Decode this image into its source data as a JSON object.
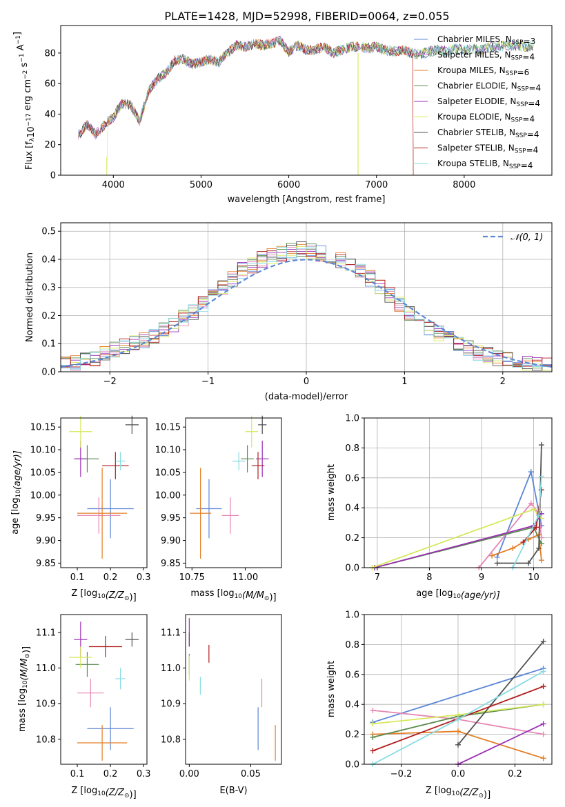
{
  "figure_title": "PLATE=1428, MJD=52998, FIBERID=0064, z=0.055",
  "colors": {
    "Chabrier MILES": "#5b87d6",
    "Salpeter MILES": "#e686b4",
    "Kroupa MILES": "#e37d24",
    "Chabrier ELODIE": "#5a8a4f",
    "Salpeter ELODIE": "#9a2fb4",
    "Kroupa ELODIE": "#d6e85a",
    "Chabrier STELIB": "#4f4f4f",
    "Salpeter STELIB": "#b11d1d",
    "Kroupa STELIB": "#86dbe3"
  },
  "models": [
    "Chabrier MILES",
    "Salpeter MILES",
    "Kroupa MILES",
    "Chabrier ELODIE",
    "Salpeter ELODIE",
    "Kroupa ELODIE",
    "Chabrier STELIB",
    "Salpeter STELIB",
    "Kroupa STELIB"
  ],
  "chart_data": [
    {
      "panel": "spectrum",
      "type": "line",
      "xlabel": "wavelength [Angstrom, rest frame]",
      "ylabel_main": "Flux [f",
      "ylabel_sub": "λ",
      "ylabel_mid": "10",
      "ylabel_sup1": "−17",
      "ylabel_tail": " erg cm",
      "ylabel_sup2": "−2",
      "ylabel_tail2": " s",
      "ylabel_sup3": "−1",
      "ylabel_tail3": " A",
      "ylabel_sup4": "−1",
      "ylabel_end": "]",
      "xlim": [
        3400,
        9000
      ],
      "ylim": [
        0,
        98
      ],
      "xticks": [
        4000,
        5000,
        6000,
        7000,
        8000
      ],
      "yticks": [
        0,
        20,
        40,
        60,
        80
      ],
      "x": [
        3600,
        3700,
        3800,
        3900,
        4000,
        4100,
        4200,
        4300,
        4400,
        4500,
        4600,
        4700,
        4800,
        4900,
        5000,
        5100,
        5200,
        5300,
        5400,
        5500,
        5600,
        5700,
        5800,
        5900,
        6000,
        6100,
        6200,
        6300,
        6400,
        6500,
        6600,
        6700,
        6800,
        6900,
        7000,
        7100,
        7200,
        7300,
        7400,
        7500,
        7600,
        7700,
        7800,
        7900,
        8000,
        8100,
        8200,
        8300,
        8400,
        8500,
        8600,
        8700,
        8800
      ],
      "y": [
        26,
        33,
        27,
        33,
        38,
        47,
        46,
        35,
        55,
        63,
        67,
        75,
        76,
        73,
        74,
        76,
        74,
        80,
        85,
        84,
        86,
        85,
        86,
        88,
        81,
        85,
        82,
        82,
        84,
        80,
        82,
        84,
        84,
        83,
        84,
        82,
        81,
        82,
        80,
        79,
        81,
        82,
        81,
        83,
        82,
        83,
        82,
        84,
        84,
        85,
        85,
        84,
        85
      ],
      "legend": [
        {
          "name": "Chabrier MILES",
          "nssp": "3"
        },
        {
          "name": "Salpeter MILES",
          "nssp": "4"
        },
        {
          "name": "Kroupa MILES",
          "nssp": "6"
        },
        {
          "name": "Chabrier ELODIE",
          "nssp": "4"
        },
        {
          "name": "Salpeter ELODIE",
          "nssp": "4"
        },
        {
          "name": "Kroupa ELODIE",
          "nssp": "4"
        },
        {
          "name": "Chabrier STELIB",
          "nssp": "4"
        },
        {
          "name": "Salpeter STELIB",
          "nssp": "4"
        },
        {
          "name": "Kroupa STELIB",
          "nssp": "4"
        }
      ],
      "legend_label_sub": "SSP",
      "legend_placement": "upper right"
    },
    {
      "panel": "residuals",
      "type": "histogram",
      "xlabel": "(data-model)/error",
      "ylabel": "Normed distribution",
      "xlim": [
        -2.5,
        2.5
      ],
      "ylim": [
        0,
        0.53
      ],
      "xticks": [
        -2,
        -1,
        0,
        1,
        2
      ],
      "yticks": [
        0.0,
        0.1,
        0.2,
        0.3,
        0.4,
        0.5
      ],
      "grid": true,
      "bin_edges_start": -2.5,
      "bin_width": 0.1,
      "approx_heights": [
        0.03,
        0.035,
        0.04,
        0.05,
        0.06,
        0.08,
        0.09,
        0.1,
        0.11,
        0.13,
        0.15,
        0.17,
        0.19,
        0.21,
        0.24,
        0.27,
        0.3,
        0.33,
        0.36,
        0.38,
        0.4,
        0.41,
        0.42,
        0.43,
        0.44,
        0.43,
        0.42,
        0.41,
        0.4,
        0.38,
        0.36,
        0.33,
        0.3,
        0.27,
        0.24,
        0.21,
        0.18,
        0.16,
        0.14,
        0.12,
        0.1,
        0.085,
        0.07,
        0.06,
        0.05,
        0.04,
        0.035,
        0.03,
        0.025,
        0.02
      ],
      "reference_label": "𝒩(0, 1)",
      "legend_placement": "upper right"
    },
    {
      "panel": "age_vs_Z",
      "type": "scatter",
      "xlabel": "Z [log",
      "xlabel_sub": "10",
      "xlabel_end": "(Z/Z",
      "xlabel_sun": "⊙",
      "xlabel_close": ")]",
      "ylabel": "age  [log",
      "ylabel_sub": "10",
      "ylabel_end": "(age/yr)]",
      "xlim": [
        0.05,
        0.31
      ],
      "ylim": [
        9.84,
        10.17
      ],
      "xticks": [
        0.1,
        0.2,
        0.3
      ],
      "yticks": [
        9.85,
        9.9,
        9.95,
        10.0,
        10.05,
        10.1,
        10.15
      ],
      "points": [
        {
          "series": "Chabrier MILES",
          "x": 0.2,
          "y": 9.97,
          "xerr": 0.07,
          "yerr": 0.065
        },
        {
          "series": "Salpeter MILES",
          "x": 0.165,
          "y": 9.955,
          "xerr": 0.065,
          "yerr": 0.04
        },
        {
          "series": "Kroupa MILES",
          "x": 0.175,
          "y": 9.96,
          "xerr": 0.075,
          "yerr": 0.1
        },
        {
          "series": "Chabrier ELODIE",
          "x": 0.13,
          "y": 10.08,
          "xerr": 0.035,
          "yerr": 0.03
        },
        {
          "series": "Salpeter ELODIE",
          "x": 0.11,
          "y": 10.08,
          "xerr": 0.02,
          "yerr": 0.04
        },
        {
          "series": "Kroupa ELODIE",
          "x": 0.11,
          "y": 10.14,
          "xerr": 0.035,
          "yerr": 0.035
        },
        {
          "series": "Chabrier STELIB",
          "x": 0.265,
          "y": 10.155,
          "xerr": 0.02,
          "yerr": 0.02
        },
        {
          "series": "Salpeter STELIB",
          "x": 0.215,
          "y": 10.065,
          "xerr": 0.04,
          "yerr": 0.03
        },
        {
          "series": "Kroupa STELIB",
          "x": 0.23,
          "y": 10.075,
          "xerr": 0.015,
          "yerr": 0.02
        }
      ]
    },
    {
      "panel": "age_vs_mass",
      "type": "scatter",
      "xlabel": "mass [log",
      "xlabel_sub": "10",
      "xlabel_end": "(M/M",
      "xlabel_sun": "⊙",
      "xlabel_close": ")]",
      "xlim": [
        10.72,
        11.17
      ],
      "ylim": [
        9.84,
        10.17
      ],
      "xticks": [
        10.75,
        11.0
      ],
      "yticks": [
        9.85,
        9.9,
        9.95,
        10.0,
        10.05,
        10.1,
        10.15
      ],
      "points": [
        {
          "series": "Chabrier MILES",
          "x": 10.83,
          "y": 9.97,
          "xerr": 0.06,
          "yerr": 0.065
        },
        {
          "series": "Salpeter MILES",
          "x": 10.93,
          "y": 9.955,
          "xerr": 0.04,
          "yerr": 0.04
        },
        {
          "series": "Kroupa MILES",
          "x": 10.79,
          "y": 9.96,
          "xerr": 0.05,
          "yerr": 0.1
        },
        {
          "series": "Chabrier ELODIE",
          "x": 11.01,
          "y": 10.08,
          "xerr": 0.03,
          "yerr": 0.03
        },
        {
          "series": "Salpeter ELODIE",
          "x": 11.08,
          "y": 10.08,
          "xerr": 0.03,
          "yerr": 0.04
        },
        {
          "series": "Kroupa ELODIE",
          "x": 11.03,
          "y": 10.14,
          "xerr": 0.03,
          "yerr": 0.035
        },
        {
          "series": "Chabrier STELIB",
          "x": 11.08,
          "y": 10.155,
          "xerr": 0.02,
          "yerr": 0.02
        },
        {
          "series": "Salpeter STELIB",
          "x": 11.06,
          "y": 10.065,
          "xerr": 0.03,
          "yerr": 0.03
        },
        {
          "series": "Kroupa STELIB",
          "x": 10.97,
          "y": 10.075,
          "xerr": 0.03,
          "yerr": 0.02
        }
      ]
    },
    {
      "panel": "weight_vs_age",
      "type": "line",
      "xlabel": "age  [log",
      "xlabel_sub": "10",
      "xlabel_end": "(age/yr)]",
      "ylabel": "mass weight",
      "xlim": [
        6.75,
        10.35
      ],
      "ylim": [
        0,
        1
      ],
      "xticks": [
        7,
        8,
        9,
        10
      ],
      "yticks": [
        0.0,
        0.2,
        0.4,
        0.6,
        0.8,
        1.0
      ],
      "grid": true,
      "series": [
        {
          "name": "Chabrier MILES",
          "x": [
            9.3,
            9.95,
            10.15
          ],
          "y": [
            0.07,
            0.64,
            0.28
          ]
        },
        {
          "name": "Salpeter MILES",
          "x": [
            8.95,
            9.95,
            10.1,
            10.15
          ],
          "y": [
            0.0,
            0.43,
            0.36,
            0.2
          ]
        },
        {
          "name": "Kroupa MILES",
          "x": [
            9.2,
            9.6,
            9.9,
            10.1,
            10.15
          ],
          "y": [
            0.08,
            0.13,
            0.19,
            0.22,
            0.05
          ]
        },
        {
          "name": "Chabrier ELODIE",
          "x": [
            6.95,
            10.0,
            10.15
          ],
          "y": [
            0.0,
            0.27,
            0.16
          ]
        },
        {
          "name": "Salpeter ELODIE",
          "x": [
            6.95,
            10.0,
            10.15
          ],
          "y": [
            0.0,
            0.28,
            0.36
          ]
        },
        {
          "name": "Kroupa ELODIE",
          "x": [
            6.9,
            10.0,
            10.15
          ],
          "y": [
            0.0,
            0.39,
            0.33
          ]
        },
        {
          "name": "Chabrier STELIB",
          "x": [
            9.3,
            9.9,
            10.1,
            10.15
          ],
          "y": [
            0.03,
            0.03,
            0.13,
            0.82
          ]
        },
        {
          "name": "Salpeter STELIB",
          "x": [
            9.8,
            10.05,
            10.15
          ],
          "y": [
            0.17,
            0.27,
            0.52
          ]
        },
        {
          "name": "Kroupa STELIB",
          "x": [
            9.6,
            10.1,
            10.15
          ],
          "y": [
            0.0,
            0.35,
            0.61
          ]
        }
      ]
    },
    {
      "panel": "mass_vs_Z",
      "type": "scatter",
      "xlabel": "Z [log",
      "xlabel_sub": "10",
      "xlabel_end": "(Z/Z",
      "xlabel_sun": "⊙",
      "xlabel_close": ")]",
      "ylabel": "mass [log",
      "ylabel_sub": "10",
      "ylabel_end": "(M/M",
      "ylabel_sun": "⊙",
      "ylabel_close": ")]",
      "xlim": [
        0.05,
        0.31
      ],
      "ylim": [
        10.73,
        11.15
      ],
      "xticks": [
        0.1,
        0.2,
        0.3
      ],
      "yticks": [
        10.8,
        10.9,
        11.0,
        11.1
      ],
      "points": [
        {
          "series": "Chabrier MILES",
          "x": 0.2,
          "y": 10.83,
          "xerr": 0.07,
          "yerr": 0.06
        },
        {
          "series": "Salpeter MILES",
          "x": 0.14,
          "y": 10.93,
          "xerr": 0.04,
          "yerr": 0.04
        },
        {
          "series": "Kroupa MILES",
          "x": 0.175,
          "y": 10.79,
          "xerr": 0.075,
          "yerr": 0.05
        },
        {
          "series": "Chabrier ELODIE",
          "x": 0.13,
          "y": 11.01,
          "xerr": 0.035,
          "yerr": 0.035
        },
        {
          "series": "Salpeter ELODIE",
          "x": 0.11,
          "y": 11.08,
          "xerr": 0.02,
          "yerr": 0.05
        },
        {
          "series": "Kroupa ELODIE",
          "x": 0.11,
          "y": 11.03,
          "xerr": 0.035,
          "yerr": 0.03
        },
        {
          "series": "Chabrier STELIB",
          "x": 0.265,
          "y": 11.08,
          "xerr": 0.02,
          "yerr": 0.02
        },
        {
          "series": "Salpeter STELIB",
          "x": 0.185,
          "y": 11.06,
          "xerr": 0.05,
          "yerr": 0.03
        },
        {
          "series": "Kroupa STELIB",
          "x": 0.23,
          "y": 10.97,
          "xerr": 0.015,
          "yerr": 0.03
        }
      ]
    },
    {
      "panel": "mass_vs_EBV",
      "type": "scatter",
      "xlabel": "E(B-V)",
      "xlim": [
        -0.003,
        0.075
      ],
      "ylim": [
        10.73,
        11.15
      ],
      "xticks": [
        0.0,
        0.05
      ],
      "yticks": [
        10.8,
        10.9,
        11.0,
        11.1
      ],
      "points": [
        {
          "series": "Chabrier MILES",
          "x": 0.056,
          "y": 10.83,
          "yerr": 0.06
        },
        {
          "series": "Salpeter MILES",
          "x": 0.059,
          "y": 10.93,
          "yerr": 0.04
        },
        {
          "series": "Kroupa MILES",
          "x": 0.07,
          "y": 10.79,
          "yerr": 0.05
        },
        {
          "series": "Chabrier ELODIE",
          "x": 0.0,
          "y": 11.01,
          "yerr": 0.03
        },
        {
          "series": "Salpeter ELODIE",
          "x": 0.0,
          "y": 11.1,
          "yerr": 0.04
        },
        {
          "series": "Kroupa ELODIE",
          "x": 0.0,
          "y": 11.0,
          "yerr": 0.035
        },
        {
          "series": "Chabrier STELIB",
          "x": 0.0,
          "y": 11.08,
          "yerr": 0.02
        },
        {
          "series": "Salpeter STELIB",
          "x": 0.016,
          "y": 11.04,
          "yerr": 0.025
        },
        {
          "series": "Kroupa STELIB",
          "x": 0.009,
          "y": 10.95,
          "yerr": 0.025
        }
      ]
    },
    {
      "panel": "weight_vs_Z",
      "type": "line",
      "xlabel": "Z [log",
      "xlabel_sub": "10",
      "xlabel_end": "(Z/Z",
      "xlabel_sun": "⊙",
      "xlabel_close": ")]",
      "ylabel": "mass weight",
      "xlim": [
        -0.33,
        0.33
      ],
      "ylim": [
        0,
        1
      ],
      "xticks": [
        -0.2,
        0.0,
        0.2
      ],
      "yticks": [
        0.0,
        0.2,
        0.4,
        0.6,
        0.8,
        1.0
      ],
      "grid": true,
      "series": [
        {
          "name": "Chabrier MILES",
          "x": [
            -0.3,
            0.3
          ],
          "y": [
            0.28,
            0.64
          ]
        },
        {
          "name": "Salpeter MILES",
          "x": [
            -0.3,
            0.0,
            0.3
          ],
          "y": [
            0.36,
            0.3,
            0.2
          ]
        },
        {
          "name": "Kroupa MILES",
          "x": [
            -0.3,
            0.0,
            0.3
          ],
          "y": [
            0.2,
            0.22,
            0.04
          ]
        },
        {
          "name": "Chabrier ELODIE",
          "x": [
            -0.3,
            0.0,
            0.3
          ],
          "y": [
            0.18,
            0.32,
            0.4
          ]
        },
        {
          "name": "Salpeter ELODIE",
          "x": [
            0.0,
            0.3
          ],
          "y": [
            0.0,
            0.27
          ]
        },
        {
          "name": "Kroupa ELODIE",
          "x": [
            -0.3,
            0.0,
            0.3
          ],
          "y": [
            0.27,
            0.33,
            0.4
          ]
        },
        {
          "name": "Chabrier STELIB",
          "x": [
            0.0,
            0.3
          ],
          "y": [
            0.13,
            0.82
          ]
        },
        {
          "name": "Salpeter STELIB",
          "x": [
            -0.3,
            0.3
          ],
          "y": [
            0.09,
            0.52
          ]
        },
        {
          "name": "Kroupa STELIB",
          "x": [
            -0.3,
            0.0,
            0.3
          ],
          "y": [
            0.0,
            0.3,
            0.62
          ]
        }
      ]
    }
  ]
}
